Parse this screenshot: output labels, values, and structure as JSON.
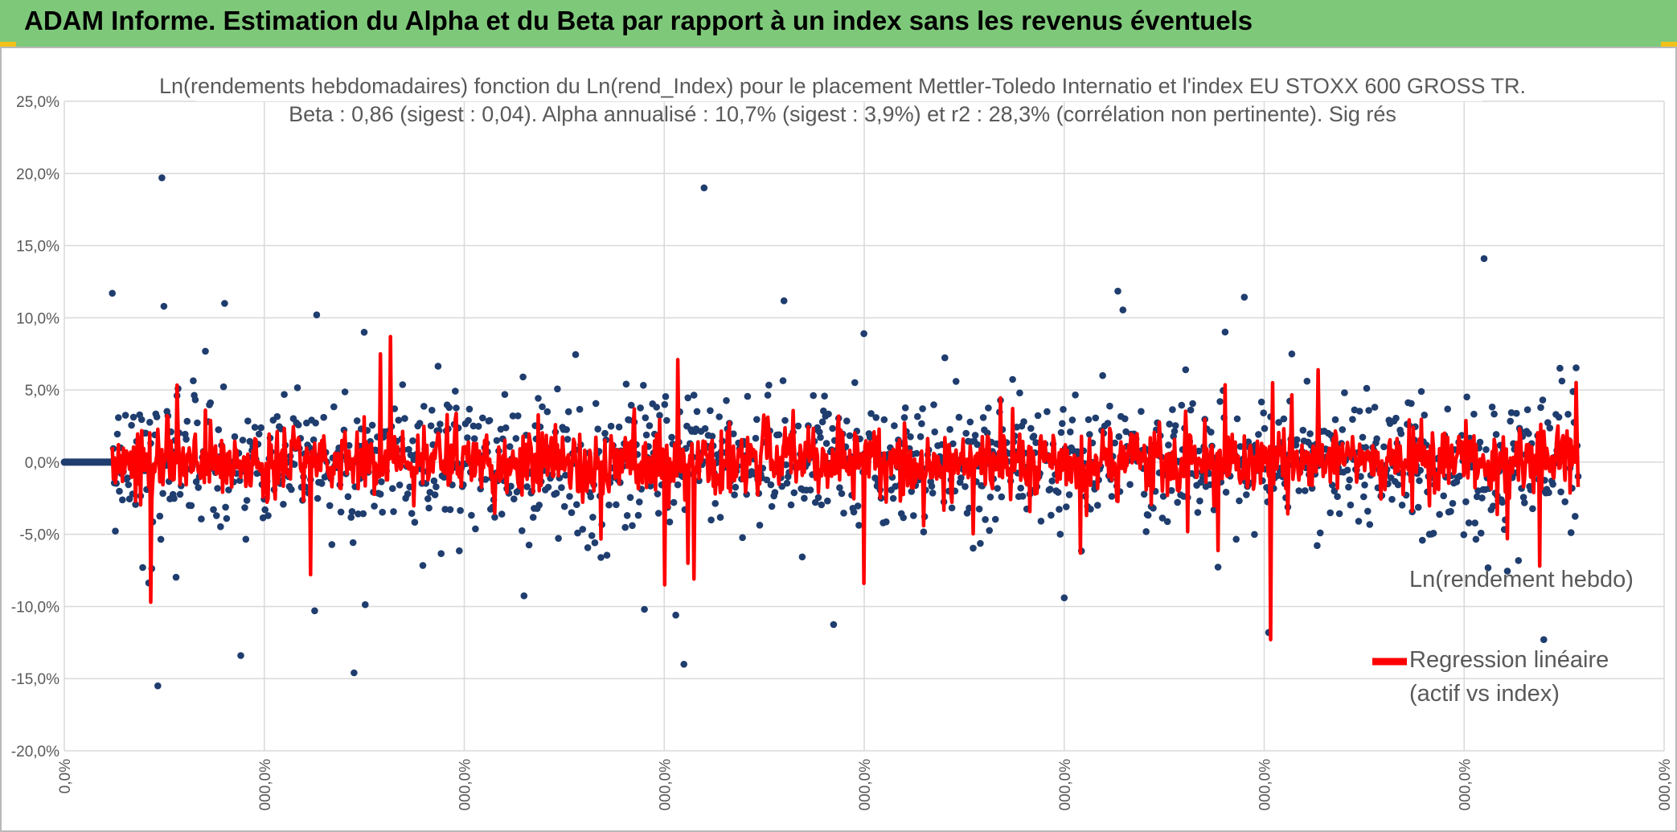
{
  "header": {
    "title": "ADAM Informe. Estimation du Alpha et du Beta par rapport à un index sans les revenus éventuels",
    "background_color": "#7ec87a",
    "corner_color": "#f2c21a"
  },
  "chart_data": {
    "type": "scatter",
    "title_line1": "Ln(rendements hebdomadaires) fonction du Ln(rend_Index) pour le placement Mettler-Toledo Internatio et l'index EU STOXX 600 GROSS TR.",
    "title_line2": "Beta : 0,86 (sigest : 0,04). Alpha annualisé : 10,7% (sigest : 3,9%) et r2 : 28,3% (corrélation non pertinente). Sig rés",
    "ylim": [
      -20,
      25
    ],
    "yticks": [
      25,
      20,
      15,
      10,
      5,
      0,
      -5,
      -10,
      -15,
      -20
    ],
    "ytick_labels": [
      "25,0%",
      "20,0%",
      "15,0%",
      "10,0%",
      "5,0%",
      "0,0%",
      "-5,0%",
      "-10,0%",
      "-15,0%",
      "-20,0%"
    ],
    "xlim": [
      0,
      8
    ],
    "xticks": [
      0,
      1,
      2,
      3,
      4,
      5,
      6,
      7,
      8
    ],
    "xtick_labels": [
      "0,0%",
      "000,0%",
      "000,0%",
      "000,0%",
      "000,0%",
      "000,0%",
      "000,0%",
      "000,0%",
      "000,0%"
    ],
    "grid": true,
    "legend": {
      "position": "right",
      "entries": [
        {
          "label": "Ln(rendement hebdo)",
          "style": "marker"
        },
        {
          "label_line1": "Regression linéaire",
          "label_line2": "(actif vs index)",
          "style": "line"
        }
      ]
    },
    "series": [
      {
        "name": "Ln(rendement hebdo)",
        "color": "#1f3d6e",
        "n_points": 1450,
        "x_start": 0.24,
        "x_end": 7.57,
        "typical_range": [
          -3.5,
          3.5
        ],
        "flat_segment": {
          "x": [
            0.0,
            0.24
          ],
          "y": 0
        },
        "notable_points": [
          {
            "x": 0.49,
            "y": 19.7
          },
          {
            "x": 3.2,
            "y": 19.0
          },
          {
            "x": 7.1,
            "y": 14.1
          },
          {
            "x": 0.24,
            "y": 11.7
          },
          {
            "x": 0.5,
            "y": 10.8
          },
          {
            "x": 0.8,
            "y": 11.0
          },
          {
            "x": 1.26,
            "y": 10.2
          },
          {
            "x": 1.5,
            "y": 9.0
          },
          {
            "x": 4.0,
            "y": 8.9
          },
          {
            "x": 0.47,
            "y": -15.5
          },
          {
            "x": 1.45,
            "y": -14.6
          },
          {
            "x": 3.1,
            "y": -14.0
          },
          {
            "x": 7.4,
            "y": -12.3
          },
          {
            "x": 6.02,
            "y": -11.8
          },
          {
            "x": 3.06,
            "y": -10.6
          },
          {
            "x": 0.88,
            "y": -13.4
          },
          {
            "x": 1.25,
            "y": -10.3
          },
          {
            "x": 2.9,
            "y": -10.2
          },
          {
            "x": 5.0,
            "y": -9.4
          },
          {
            "x": 0.39,
            "y": -7.3
          }
        ]
      },
      {
        "name": "Regression linéaire (actif vs index)",
        "color": "#ff0000",
        "n_points": 1450,
        "x_start": 0.24,
        "x_end": 7.57,
        "beta": 0.86,
        "typical_range": [
          -2.0,
          2.0
        ],
        "notable_points": [
          {
            "x": 0.43,
            "y": -9.7
          },
          {
            "x": 6.03,
            "y": -12.3
          },
          {
            "x": 3.07,
            "y": 7.1
          },
          {
            "x": 1.63,
            "y": 8.7
          },
          {
            "x": 3.0,
            "y": -8.5
          },
          {
            "x": 3.15,
            "y": -8.1
          },
          {
            "x": 3.12,
            "y": -7.0
          },
          {
            "x": 4.0,
            "y": -8.4
          },
          {
            "x": 7.38,
            "y": -7.2
          },
          {
            "x": 1.23,
            "y": -7.8
          },
          {
            "x": 6.27,
            "y": 6.4
          },
          {
            "x": 6.04,
            "y": 5.5
          },
          {
            "x": 5.08,
            "y": -6.3
          },
          {
            "x": 1.58,
            "y": 7.5
          }
        ]
      }
    ]
  }
}
